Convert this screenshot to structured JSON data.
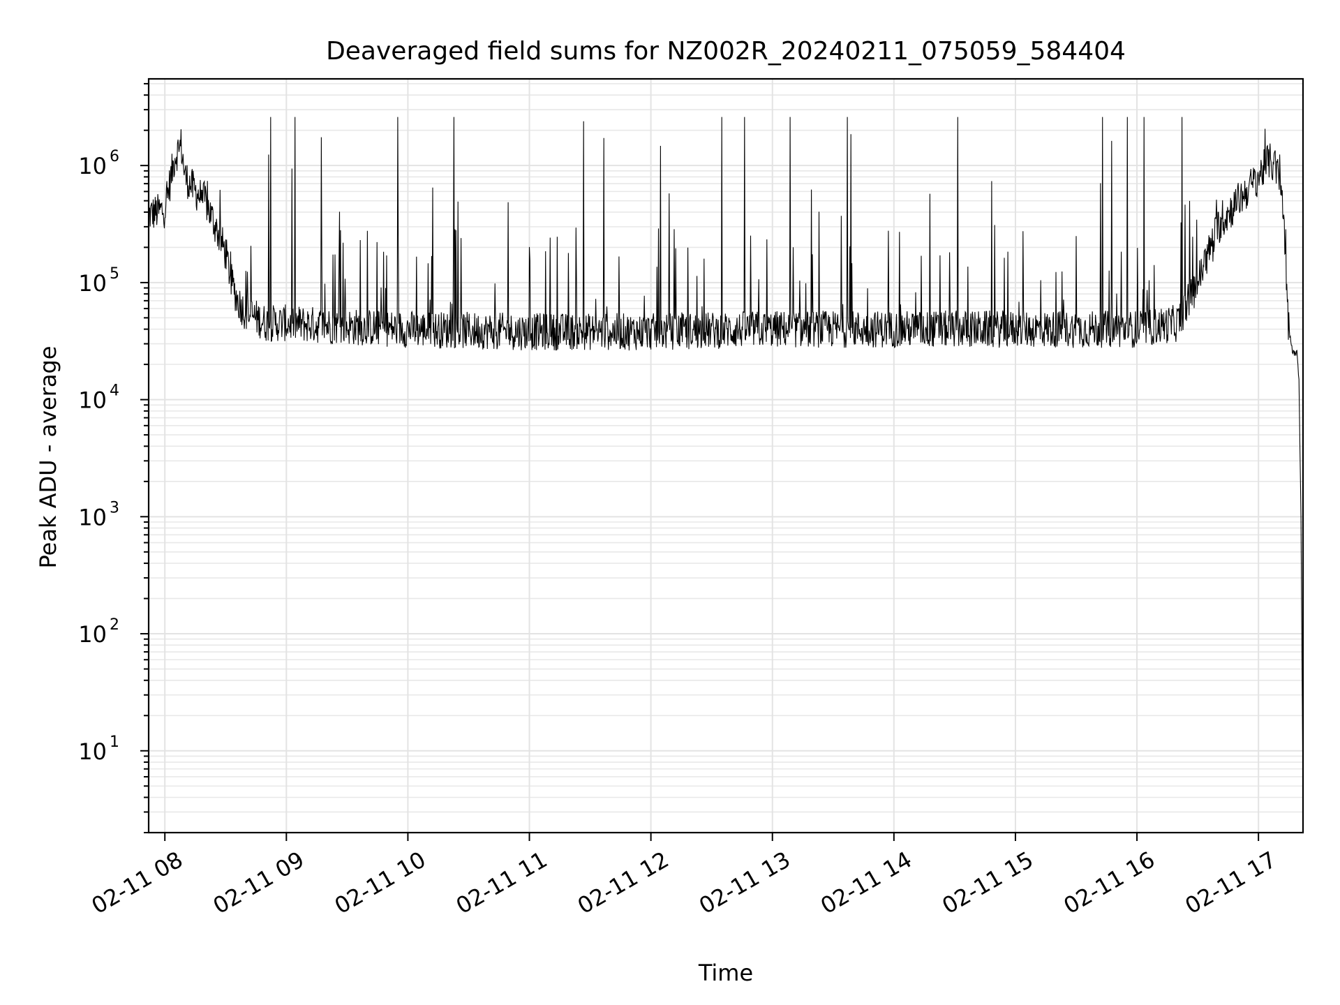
{
  "chart_data": {
    "type": "line",
    "title": "Deaveraged field sums for NZ002R_20240211_075059_584404",
    "xlabel": "Time",
    "ylabel": "Peak ADU - average",
    "yscale": "log",
    "ylim": [
      2,
      5500000
    ],
    "xlim": [
      "02-11 07:52",
      "02-11 17:22"
    ],
    "grid": true,
    "x_ticks": [
      "02-11 08",
      "02-11 09",
      "02-11 10",
      "02-11 11",
      "02-11 12",
      "02-11 13",
      "02-11 14",
      "02-11 15",
      "02-11 16",
      "02-11 17"
    ],
    "y_ticks": [
      {
        "base": "10",
        "exp": "1",
        "value": 10
      },
      {
        "base": "10",
        "exp": "2",
        "value": 100
      },
      {
        "base": "10",
        "exp": "3",
        "value": 1000
      },
      {
        "base": "10",
        "exp": "4",
        "value": 10000
      },
      {
        "base": "10",
        "exp": "5",
        "value": 100000
      },
      {
        "base": "10",
        "exp": "6",
        "value": 1000000
      }
    ],
    "series": [
      {
        "color": "#000000",
        "x": [
          "02-11 07:52",
          "02-11 08:00",
          "02-11 08:05",
          "02-11 08:08",
          "02-11 08:10",
          "02-11 08:15",
          "02-11 08:20",
          "02-11 08:25",
          "02-11 08:30",
          "02-11 08:33",
          "02-11 08:36",
          "02-11 08:40",
          "02-11 08:45",
          "02-11 08:50",
          "02-11 09:00",
          "02-11 09:30",
          "02-11 10:00",
          "02-11 11:00",
          "02-11 12:00",
          "02-11 13:00",
          "02-11 14:00",
          "02-11 15:00",
          "02-11 16:00",
          "02-11 16:20",
          "02-11 16:30",
          "02-11 16:40",
          "02-11 16:50",
          "02-11 17:00",
          "02-11 17:05",
          "02-11 17:08",
          "02-11 17:10",
          "02-11 17:12",
          "02-11 17:13",
          "02-11 17:15",
          "02-11 17:17",
          "02-11 17:19",
          "02-11 17:20",
          "02-11 17:21",
          "02-11 17:22"
        ],
        "y": [
          380000,
          420000,
          1200000,
          1500000,
          800000,
          600000,
          500000,
          300000,
          180000,
          100000,
          70000,
          55000,
          50000,
          45000,
          45000,
          42000,
          40000,
          38000,
          38000,
          40000,
          40000,
          40000,
          40000,
          45000,
          100000,
          300000,
          500000,
          800000,
          1100000,
          1000000,
          800000,
          500000,
          200000,
          40000,
          25000,
          25000,
          15000,
          1000,
          4
        ]
      }
    ],
    "notes": "Noisy baseline ~3e4-6e4 with many sharp spikes up to ~1e6-2e6; steep drop after 17:10"
  }
}
